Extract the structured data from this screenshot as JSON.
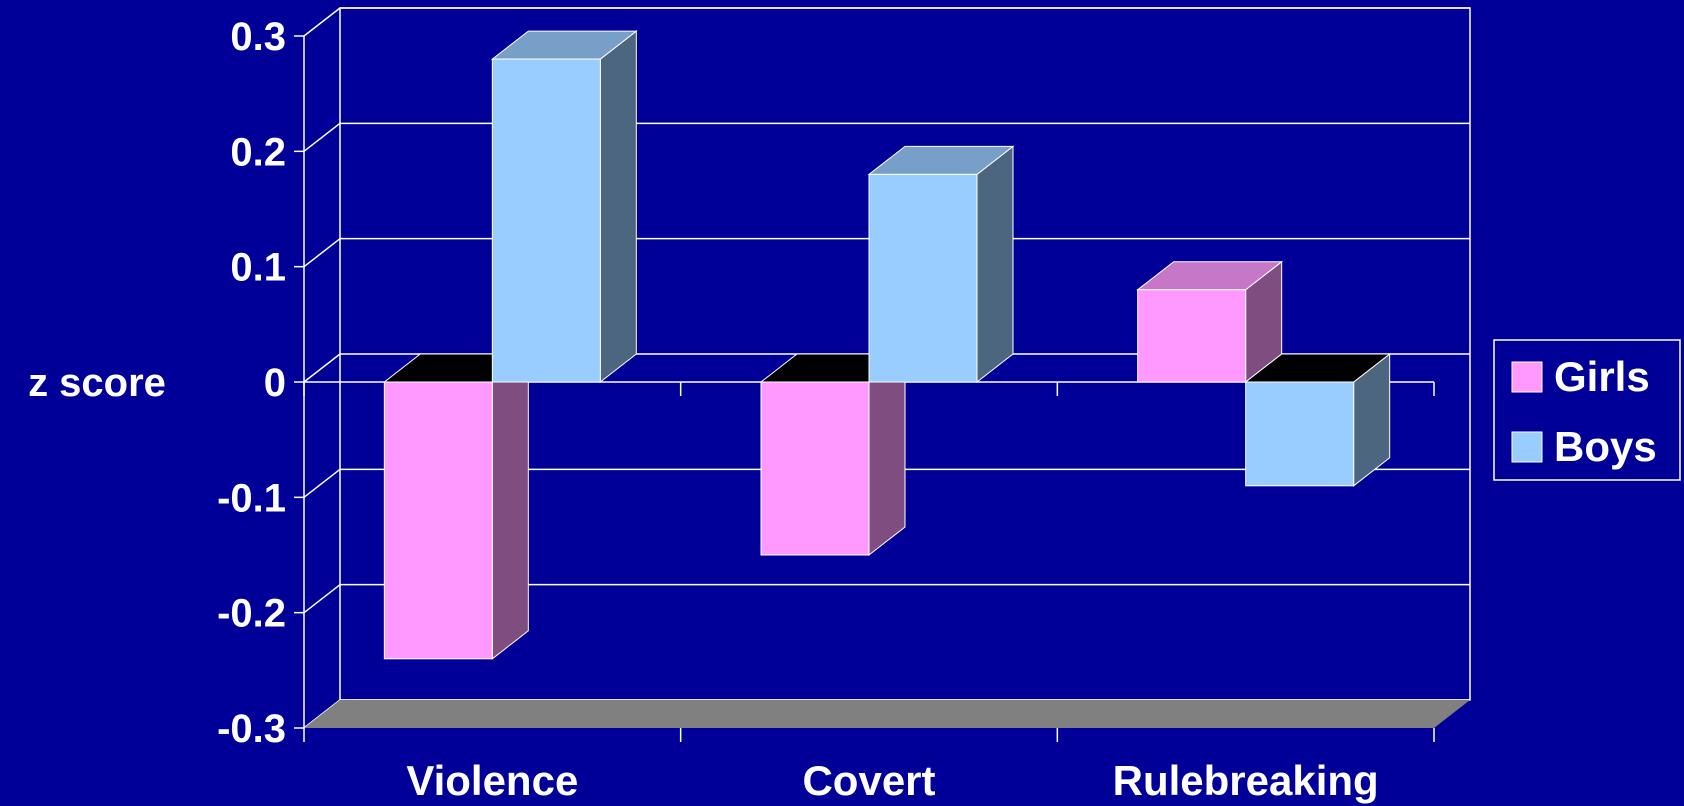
{
  "chart_data": {
    "type": "bar",
    "style": "3d-clustered-column",
    "categories": [
      "Violence",
      "Covert",
      "Rulebreaking"
    ],
    "series": [
      {
        "name": "Girls",
        "values": [
          -0.24,
          -0.15,
          0.08
        ]
      },
      {
        "name": "Boys",
        "values": [
          0.28,
          0.18,
          -0.09
        ]
      }
    ],
    "ylabel": "z score",
    "ylim": [
      -0.3,
      0.3
    ],
    "yticks": [
      0.3,
      0.2,
      0.1,
      0,
      -0.1,
      -0.2,
      -0.3
    ],
    "ytick_labels": [
      "0.3",
      "0.2",
      "0.1",
      "0",
      "-0.1",
      "-0.2",
      "-0.3"
    ],
    "grid": true,
    "legend": "right",
    "colors": {
      "background": "#000099",
      "Girls": "#ff99ff",
      "Boys": "#99ccff",
      "floor": "#808080",
      "gridline": "#ffffff"
    }
  }
}
